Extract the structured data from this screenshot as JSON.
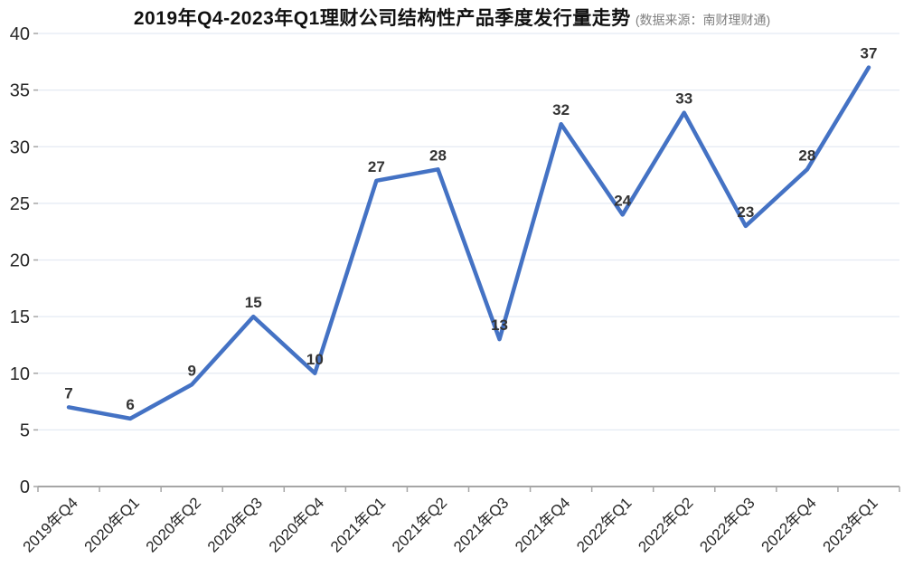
{
  "header": {
    "title": "2019年Q4-2023年Q1理财公司结构性产品季度发行量走势",
    "source_note": "(数据来源：南财理财通)"
  },
  "chart_data": {
    "type": "line",
    "title": "2019年Q4-2023年Q1理财公司结构性产品季度发行量走势",
    "subtitle": "(数据来源：南财理财通)",
    "categories": [
      "2019年Q4",
      "2020年Q1",
      "2020年Q2",
      "2020年Q3",
      "2020年Q4",
      "2021年Q1",
      "2021年Q2",
      "2021年Q3",
      "2021年Q4",
      "2022年Q1",
      "2022年Q2",
      "2022年Q3",
      "2022年Q4",
      "2023年Q1"
    ],
    "values": [
      7,
      6,
      9,
      15,
      10,
      27,
      28,
      13,
      32,
      24,
      33,
      23,
      28,
      37
    ],
    "xlabel": "",
    "ylabel": "",
    "ylim": [
      0,
      40
    ],
    "yticks": [
      0,
      5,
      10,
      15,
      20,
      25,
      30,
      35,
      40
    ],
    "grid": true,
    "legend": false,
    "data_labels": true,
    "colors": {
      "line": "#4472C4",
      "grid": "#e4eaf3",
      "axis": "#a6a6a6",
      "tick_label": "#262626",
      "data_label": "#333333"
    }
  }
}
